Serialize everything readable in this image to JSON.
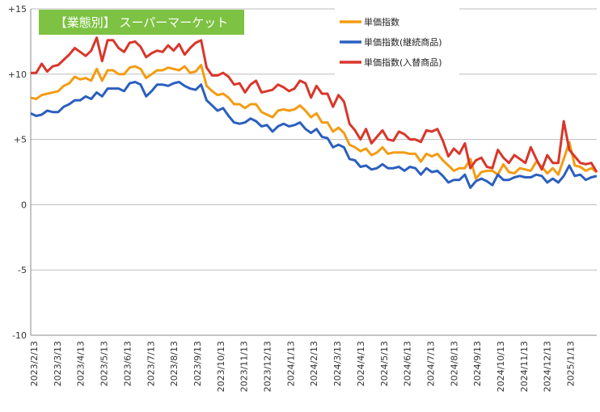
{
  "chart_data": {
    "type": "line",
    "title": "【業態別】 スーパーマーケット",
    "title_bg": "#7dc242",
    "ylim": [
      -10,
      15
    ],
    "yticks": [
      -10,
      -5,
      0,
      5,
      10,
      15
    ],
    "ytick_labels": [
      "-10",
      "-5",
      "0",
      "+5",
      "+10",
      "+15"
    ],
    "xtick_labels": [
      "2023/2/13",
      "2023/3/13",
      "2023/4/13",
      "2023/5/13",
      "2023/6/13",
      "2023/7/13",
      "2023/8/13",
      "2023/9/13",
      "2023/10/13",
      "2023/11/13",
      "2023/12/13",
      "2024/1/13",
      "2024/2/13",
      "2024/3/13",
      "2024/4/13",
      "2024/5/13",
      "2024/6/13",
      "2024/7/13",
      "2024/8/13",
      "2024/9/13",
      "2024/10/13",
      "2024/11/13",
      "2024/12/13",
      "2025/1/13"
    ],
    "grid": true,
    "legend_position": "top-right",
    "series": [
      {
        "name": "単価指数",
        "color": "#f39c12",
        "values": [
          8.2,
          8.1,
          8.4,
          8.5,
          8.6,
          8.7,
          9.1,
          9.3,
          9.8,
          9.6,
          9.7,
          9.5,
          10.4,
          9.5,
          10.3,
          10.3,
          10.0,
          10.0,
          10.5,
          10.6,
          10.4,
          9.7,
          10.0,
          10.3,
          10.3,
          10.5,
          10.4,
          10.3,
          10.6,
          10.1,
          10.2,
          10.7,
          9.1,
          8.7,
          8.4,
          8.5,
          8.2,
          7.7,
          7.7,
          7.4,
          7.7,
          7.7,
          7.1,
          6.9,
          6.7,
          7.2,
          7.3,
          7.2,
          7.3,
          7.6,
          7.2,
          6.7,
          7.0,
          6.3,
          6.3,
          5.6,
          5.9,
          5.5,
          4.6,
          4.4,
          4.1,
          4.3,
          3.8,
          4.0,
          4.4,
          3.9,
          4.0,
          4.0,
          4.0,
          3.9,
          3.9,
          3.3,
          3.9,
          3.7,
          3.9,
          3.4,
          3.0,
          2.6,
          2.8,
          2.8,
          3.5,
          2.0,
          2.5,
          2.6,
          2.6,
          2.3,
          3.1,
          2.5,
          2.4,
          2.8,
          2.7,
          2.6,
          3.3,
          2.9,
          2.4,
          2.8,
          2.3,
          3.5,
          4.8,
          3.0,
          2.9,
          2.6,
          2.8,
          2.5
        ]
      },
      {
        "name": "単価指数(継続商品)",
        "color": "#2b5fbf",
        "values": [
          7.0,
          6.8,
          6.9,
          7.2,
          7.1,
          7.1,
          7.5,
          7.7,
          8.0,
          8.0,
          8.3,
          8.1,
          8.6,
          8.3,
          8.9,
          8.9,
          8.9,
          8.7,
          9.3,
          9.4,
          9.2,
          8.3,
          8.7,
          9.2,
          9.2,
          9.1,
          9.3,
          9.4,
          9.1,
          8.9,
          8.8,
          9.2,
          8.0,
          7.6,
          7.2,
          7.4,
          6.8,
          6.3,
          6.2,
          6.3,
          6.6,
          6.4,
          6.0,
          6.1,
          5.6,
          6.0,
          6.2,
          6.0,
          6.1,
          6.3,
          5.8,
          5.5,
          5.8,
          5.2,
          5.1,
          4.4,
          4.6,
          4.4,
          3.5,
          3.4,
          2.9,
          3.0,
          2.7,
          2.8,
          3.1,
          2.8,
          2.8,
          2.9,
          2.6,
          2.9,
          2.8,
          2.3,
          2.8,
          2.5,
          2.6,
          2.2,
          1.7,
          1.9,
          1.9,
          2.3,
          1.3,
          1.8,
          2.0,
          1.8,
          1.5,
          2.3,
          1.9,
          1.9,
          2.1,
          2.2,
          2.1,
          2.1,
          2.3,
          2.2,
          1.7,
          2.0,
          1.7,
          2.2,
          3.0,
          2.2,
          2.3,
          1.9,
          2.1,
          2.2
        ]
      },
      {
        "name": "単価指数(入替商品)",
        "color": "#d9362b",
        "values": [
          10.1,
          10.1,
          10.8,
          10.2,
          10.6,
          10.7,
          11.1,
          11.5,
          12.0,
          11.7,
          11.4,
          11.8,
          12.8,
          11.0,
          12.6,
          12.6,
          12.0,
          11.7,
          12.4,
          12.5,
          12.1,
          11.3,
          11.6,
          11.8,
          11.7,
          12.2,
          11.8,
          12.3,
          11.5,
          12.0,
          12.4,
          12.6,
          10.5,
          9.9,
          9.9,
          10.1,
          9.8,
          9.2,
          9.3,
          8.6,
          9.2,
          9.5,
          8.6,
          8.7,
          8.8,
          9.2,
          9.0,
          8.7,
          8.9,
          9.5,
          9.3,
          8.2,
          9.1,
          8.5,
          8.5,
          7.5,
          8.4,
          7.9,
          6.2,
          5.7,
          5.0,
          5.8,
          4.7,
          5.2,
          5.7,
          5.0,
          4.9,
          5.6,
          5.4,
          5.0,
          5.0,
          4.8,
          5.7,
          5.6,
          5.8,
          4.9,
          3.7,
          4.3,
          3.9,
          4.7,
          2.8,
          3.4,
          3.6,
          2.9,
          2.8,
          4.2,
          3.6,
          3.2,
          3.8,
          3.5,
          3.2,
          4.4,
          3.5,
          2.7,
          3.8,
          3.2,
          3.2,
          6.4,
          4.2,
          3.7,
          3.2,
          3.1,
          3.2,
          2.5
        ]
      }
    ]
  }
}
